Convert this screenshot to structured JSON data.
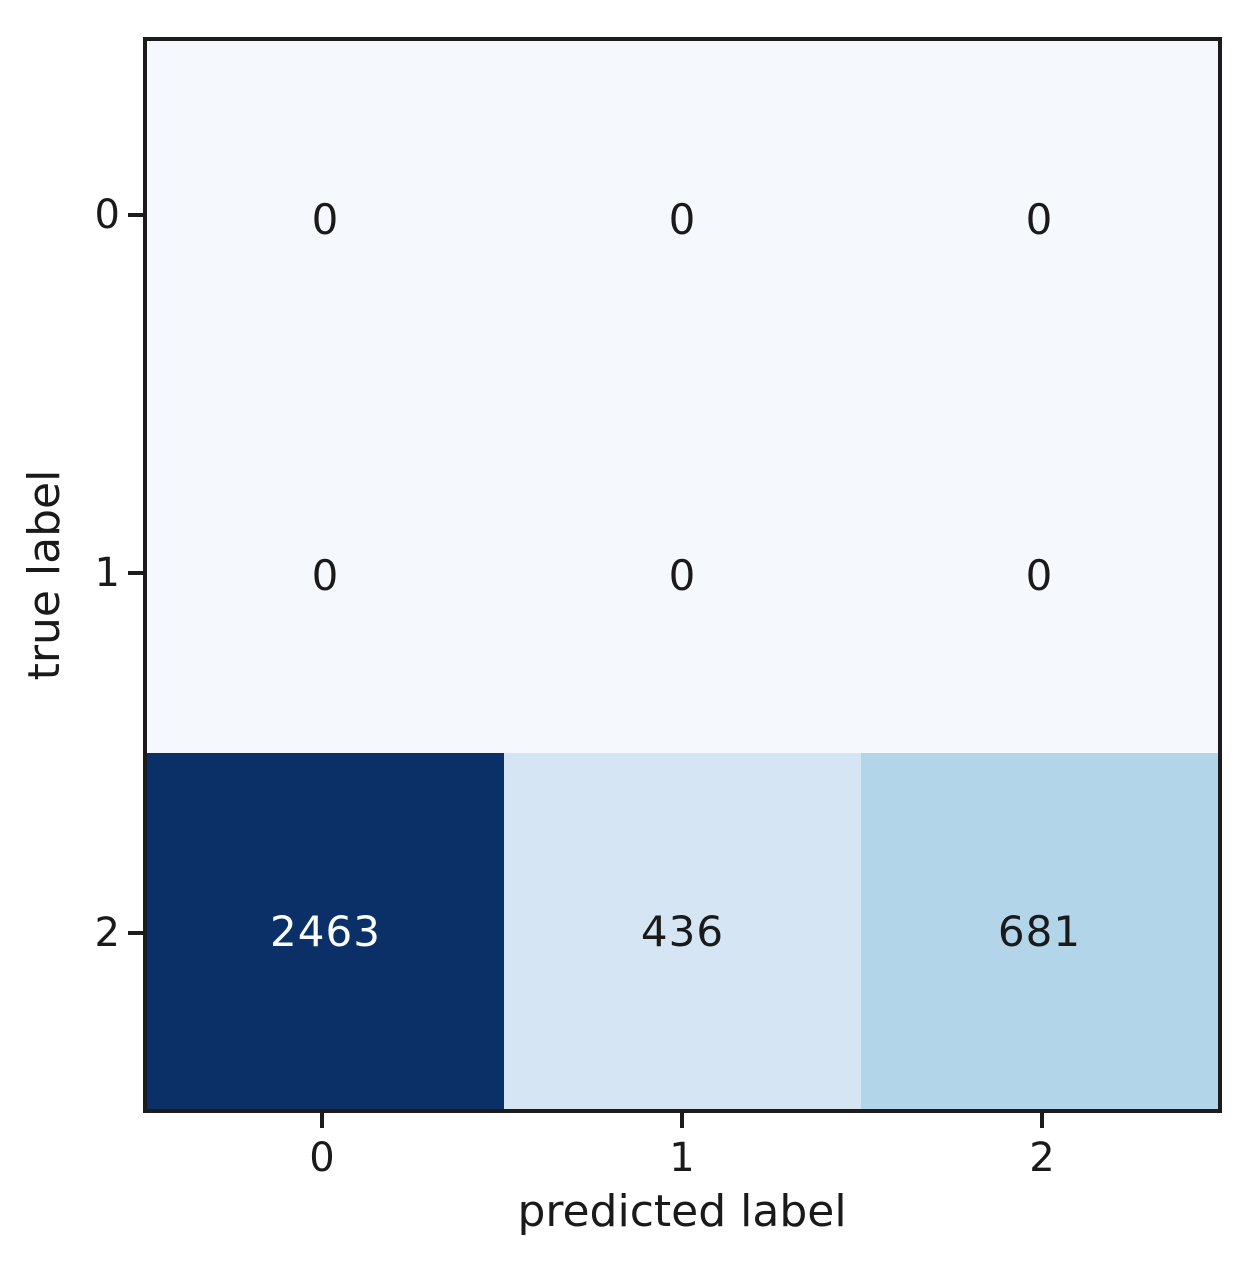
{
  "figure": {
    "background_color": "#ffffff",
    "axis_line_color": "#1c1c1c",
    "tick_text_color": "#1a1a1a"
  },
  "chart_data": {
    "type": "heatmap",
    "subtype": "confusion-matrix",
    "title": "",
    "xlabel": "predicted label",
    "ylabel": "true label",
    "x_tick_labels": [
      "0",
      "1",
      "2"
    ],
    "y_tick_labels": [
      "0",
      "1",
      "2"
    ],
    "colormap": "Blues",
    "grid": false,
    "legend": "none",
    "matrix": [
      [
        0,
        0,
        0
      ],
      [
        0,
        0,
        0
      ],
      [
        2463,
        436,
        681
      ]
    ],
    "cells": [
      {
        "row": 0,
        "col": 0,
        "value": "0",
        "bg": "#f5f9fd",
        "fg": "#1a1a1a"
      },
      {
        "row": 0,
        "col": 1,
        "value": "0",
        "bg": "#f5f9fd",
        "fg": "#1a1a1a"
      },
      {
        "row": 0,
        "col": 2,
        "value": "0",
        "bg": "#f5f9fd",
        "fg": "#1a1a1a"
      },
      {
        "row": 1,
        "col": 0,
        "value": "0",
        "bg": "#f5f9fd",
        "fg": "#1a1a1a"
      },
      {
        "row": 1,
        "col": 1,
        "value": "0",
        "bg": "#f5f9fd",
        "fg": "#1a1a1a"
      },
      {
        "row": 1,
        "col": 2,
        "value": "0",
        "bg": "#f5f9fd",
        "fg": "#1a1a1a"
      },
      {
        "row": 2,
        "col": 0,
        "value": "2463",
        "bg": "#0b3068",
        "fg": "#fbfcfe"
      },
      {
        "row": 2,
        "col": 1,
        "value": "436",
        "bg": "#d5e5f3",
        "fg": "#1a1a1a"
      },
      {
        "row": 2,
        "col": 2,
        "value": "681",
        "bg": "#b3d5ea",
        "fg": "#1a1a1a"
      }
    ]
  }
}
